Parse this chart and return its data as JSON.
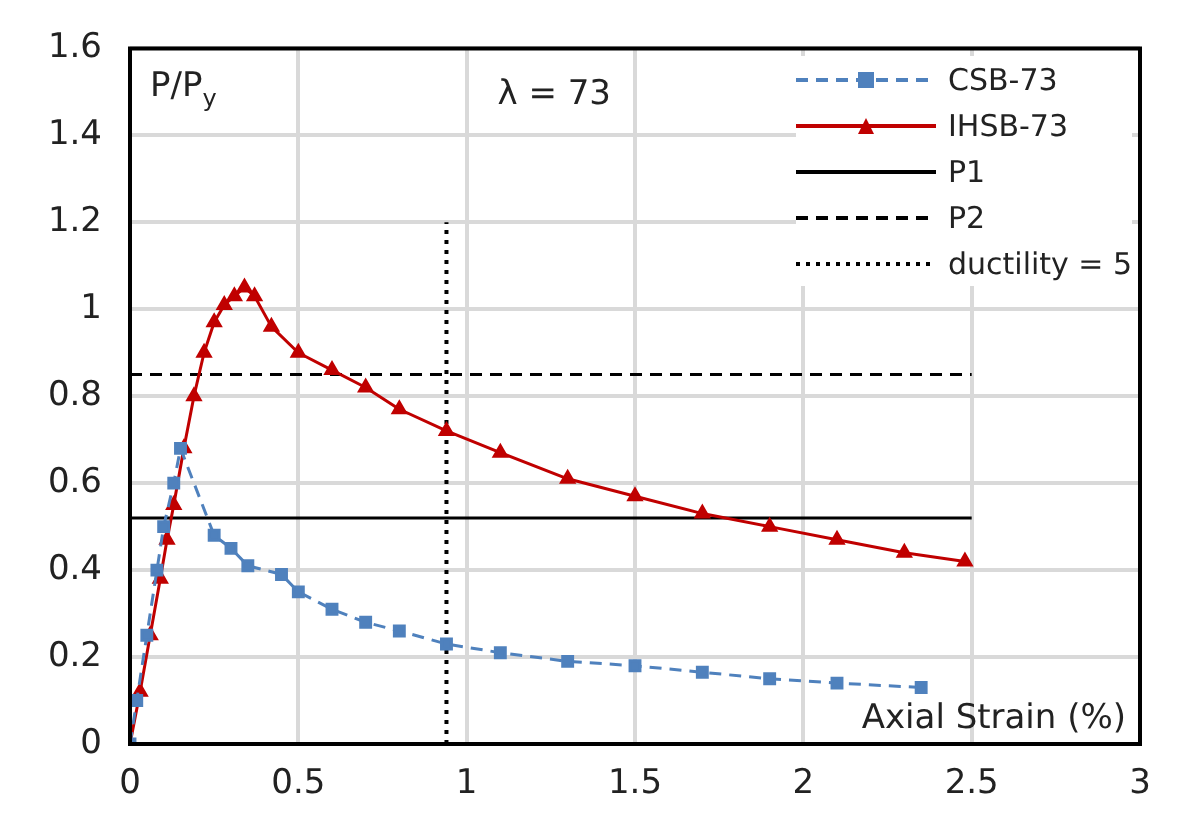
{
  "chart_data": {
    "type": "line",
    "xlabel": "Axial Strain (%)",
    "ylabel": "P/P$_{y}$",
    "annotations": [
      "λ = 73"
    ],
    "xlim": [
      0,
      3
    ],
    "xticks": [
      0,
      0.5,
      1,
      1.5,
      2,
      2.5,
      3
    ],
    "ylim": [
      0,
      1.6
    ],
    "yticks": [
      0,
      0.2,
      0.4,
      0.6,
      0.8,
      1,
      1.2,
      1.4,
      1.6
    ],
    "grid": true,
    "legend": "top right",
    "series": [
      {
        "name": "CSB-73",
        "color": "#4f81bd",
        "marker": "square",
        "line_style": "dashed",
        "x": [
          0,
          0.02,
          0.05,
          0.08,
          0.1,
          0.13,
          0.15,
          0.25,
          0.3,
          0.35,
          0.45,
          0.5,
          0.6,
          0.7,
          0.8,
          0.94,
          1.1,
          1.3,
          1.5,
          1.7,
          1.9,
          2.1,
          2.35
        ],
        "values": [
          0,
          0.1,
          0.25,
          0.4,
          0.5,
          0.6,
          0.68,
          0.48,
          0.45,
          0.41,
          0.39,
          0.35,
          0.31,
          0.28,
          0.26,
          0.23,
          0.21,
          0.19,
          0.18,
          0.165,
          0.15,
          0.14,
          0.13
        ]
      },
      {
        "name": "IHSB-73",
        "color": "#c00000",
        "marker": "triangle",
        "line_style": "solid",
        "x": [
          0,
          0.03,
          0.06,
          0.09,
          0.11,
          0.13,
          0.16,
          0.19,
          0.22,
          0.25,
          0.28,
          0.31,
          0.34,
          0.37,
          0.42,
          0.5,
          0.6,
          0.7,
          0.8,
          0.94,
          1.1,
          1.3,
          1.5,
          1.7,
          1.9,
          2.1,
          2.3,
          2.48
        ],
        "values": [
          0,
          0.12,
          0.25,
          0.38,
          0.47,
          0.55,
          0.68,
          0.8,
          0.9,
          0.97,
          1.01,
          1.03,
          1.05,
          1.03,
          0.96,
          0.9,
          0.86,
          0.82,
          0.77,
          0.72,
          0.67,
          0.61,
          0.57,
          0.53,
          0.5,
          0.47,
          0.44,
          0.42
        ]
      },
      {
        "name": "P1",
        "color": "#000000",
        "marker": "none",
        "line_style": "solid",
        "x": [
          0,
          2.5
        ],
        "values": [
          0.52,
          0.52
        ]
      },
      {
        "name": "P2",
        "color": "#000000",
        "marker": "none",
        "line_style": "dashed",
        "x": [
          0,
          2.5
        ],
        "values": [
          0.85,
          0.85
        ]
      },
      {
        "name": "ductility = 5",
        "color": "#000000",
        "marker": "none",
        "line_style": "dotted",
        "x": [
          0.94,
          0.94
        ],
        "values": [
          0,
          1.2
        ]
      }
    ]
  }
}
